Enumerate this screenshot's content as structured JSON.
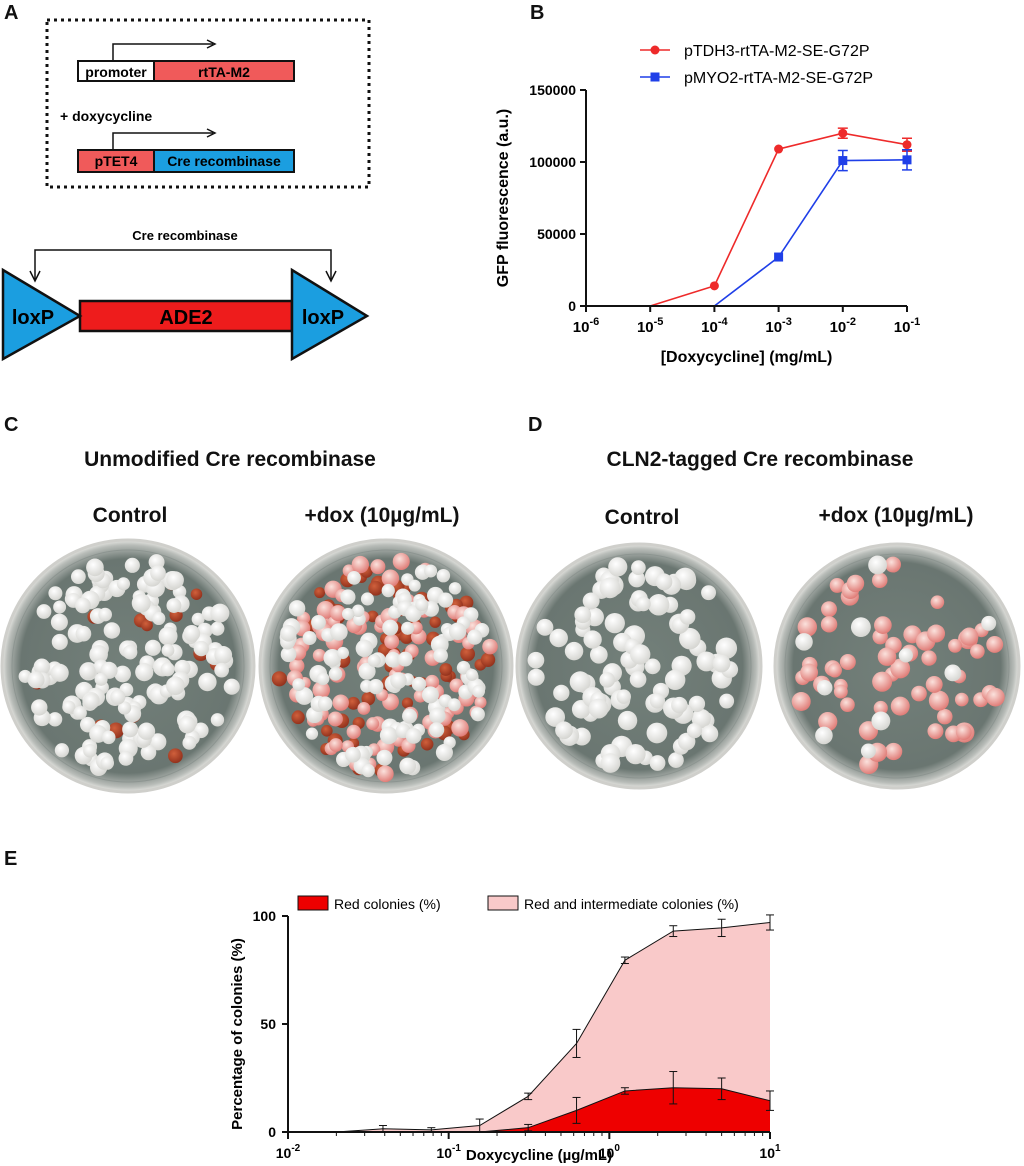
{
  "panels": {
    "a": "A",
    "b": "B",
    "c": "C",
    "d": "D",
    "e": "E"
  },
  "panel_a": {
    "promoter_label": "promoter",
    "rtta_label": "rtTA-M2",
    "dox_label": "+ doxycycline",
    "ptet_label": "pTET4",
    "cre_label": "Cre recombinase",
    "arrow_label": "Cre recombinase",
    "loxp_left": "loxP",
    "ade2_label": "ADE2",
    "loxp_right": "loxP",
    "colors": {
      "red": "#f05a5a",
      "blue": "#1b9ee0",
      "ade2_red": "#ee1c1c"
    }
  },
  "panel_c": {
    "title": "Unmodified Cre recombinase",
    "control_label": "Control",
    "dox_label": "+dox (10µg/mL)"
  },
  "panel_d": {
    "title": "CLN2-tagged Cre recombinase",
    "control_label": "Control",
    "dox_label": "+dox (10µg/mL)"
  },
  "chart_data": [
    {
      "id": "B",
      "type": "line",
      "x_scale": "log",
      "xlabel": "[Doxycycline] (mg/mL)",
      "ylabel": "GFP fluorescence (a.u.)",
      "xlim": [
        1e-06,
        0.1
      ],
      "ylim": [
        0,
        150000
      ],
      "x_ticks": [
        {
          "base": "10",
          "exp": "-6"
        },
        {
          "base": "10",
          "exp": "-5"
        },
        {
          "base": "10",
          "exp": "-4"
        },
        {
          "base": "10",
          "exp": "-3"
        },
        {
          "base": "10",
          "exp": "-2"
        },
        {
          "base": "10",
          "exp": "-1"
        }
      ],
      "y_ticks": [
        "0",
        "50000",
        "100000",
        "150000"
      ],
      "y_tick_values": [
        0,
        50000,
        100000,
        150000
      ],
      "series": [
        {
          "name": "pTDH3-rtTA-M2-SE-G72P",
          "color": "#ee2a2a",
          "marker": "circle",
          "x": [
            1e-05,
            0.0001,
            0.001,
            0.01,
            0.1
          ],
          "y": [
            0,
            14000,
            109000,
            120000,
            112000
          ],
          "err": [
            0,
            0,
            0,
            3500,
            4500
          ],
          "show_marker": [
            false,
            true,
            true,
            true,
            true
          ]
        },
        {
          "name": "pMYO2-rtTA-M2-SE-G72P",
          "color": "#1f3fe8",
          "marker": "square",
          "x": [
            0.0001,
            0.001,
            0.01,
            0.1
          ],
          "y": [
            0,
            34000,
            101000,
            101500
          ],
          "err": [
            0,
            0,
            7000,
            7000
          ],
          "show_marker": [
            false,
            true,
            true,
            true
          ]
        }
      ]
    },
    {
      "id": "E",
      "type": "area",
      "x_scale": "log",
      "xlabel": "Doxycycline (µg/mL)",
      "ylabel": "Percentage of colonies (%)",
      "xlim": [
        0.01,
        10
      ],
      "ylim": [
        0,
        100
      ],
      "x_ticks": [
        {
          "base": "10",
          "exp": "-2"
        },
        {
          "base": "10",
          "exp": "-1"
        },
        {
          "base": "10",
          "exp": "0"
        },
        {
          "base": "10",
          "exp": "1"
        }
      ],
      "y_ticks": [
        "0",
        "50",
        "100"
      ],
      "y_tick_values": [
        0,
        50,
        100
      ],
      "x": [
        0.01,
        0.02,
        0.039,
        0.078,
        0.156,
        0.3125,
        0.625,
        1.25,
        2.5,
        5,
        10
      ],
      "series": [
        {
          "name": "Red and intermediate colonies (%)",
          "fill": "#f9c9c9",
          "values": [
            0,
            0,
            1.5,
            1,
            3,
            16.5,
            41,
            79.5,
            93,
            94.5,
            97
          ],
          "err": [
            0,
            0,
            1.5,
            1,
            3,
            1.5,
            6.5,
            1.5,
            2.5,
            4,
            3.5
          ]
        },
        {
          "name": "Red colonies (%)",
          "fill": "#ee0000",
          "values": [
            0,
            0,
            0,
            0,
            0,
            2,
            10,
            19,
            20.5,
            20,
            14.5
          ],
          "err": [
            0,
            0,
            0,
            0,
            0,
            1.5,
            6,
            1.5,
            7.5,
            5,
            4.5
          ]
        }
      ]
    }
  ]
}
